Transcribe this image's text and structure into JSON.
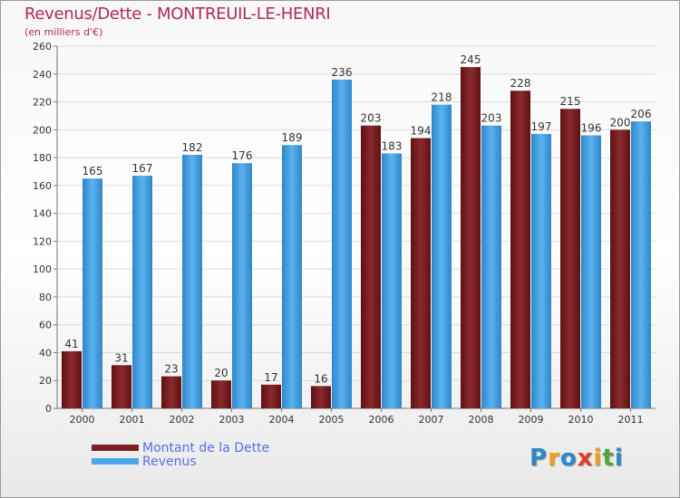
{
  "header": {
    "title": "Revenus/Dette - MONTREUIL-LE-HENRI",
    "subtitle": "(en milliers d'€)"
  },
  "brand": {
    "text": "Proxiti",
    "letters": [
      "P",
      "r",
      "o",
      "x",
      "i",
      "t",
      "i"
    ],
    "colors": [
      "#2f86c9",
      "#f39c1c",
      "#2f86c9",
      "#e23b2c",
      "#f39c1c",
      "#4aa83c",
      "#2f86c9"
    ]
  },
  "chart_data": {
    "type": "bar",
    "title": "Revenus/Dette - MONTREUIL-LE-HENRI",
    "ylabel": "(en milliers d'€)",
    "ylim": [
      0,
      260
    ],
    "yticks": [
      0,
      20,
      40,
      60,
      80,
      100,
      120,
      140,
      160,
      180,
      200,
      220,
      240,
      260
    ],
    "grid": true,
    "legend_position": "bottom-left",
    "categories": [
      "2000",
      "2001",
      "2002",
      "2003",
      "2004",
      "2005",
      "2006",
      "2007",
      "2008",
      "2009",
      "2010",
      "2011"
    ],
    "series": [
      {
        "name": "Montant de la Dette",
        "color": "#7a1f22",
        "values": [
          41,
          31,
          23,
          20,
          17,
          16,
          203,
          194,
          245,
          228,
          215,
          200
        ]
      },
      {
        "name": "Revenus",
        "color": "#4da6ea",
        "values": [
          165,
          167,
          182,
          176,
          189,
          236,
          183,
          218,
          203,
          197,
          196,
          206
        ]
      }
    ]
  }
}
